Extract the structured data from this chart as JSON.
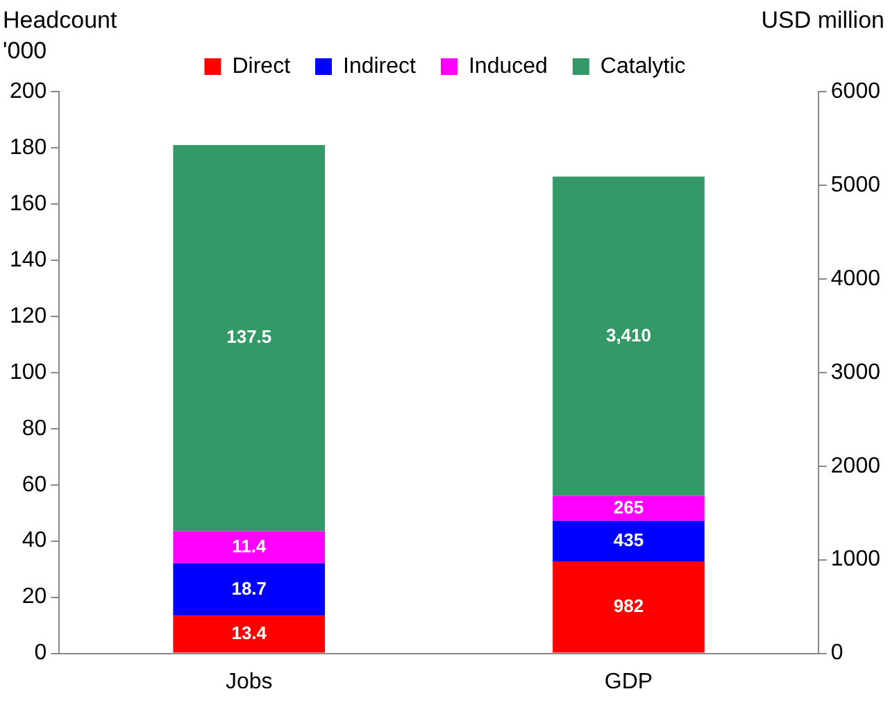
{
  "chart_data": {
    "type": "bar",
    "stacked": true,
    "categories": [
      "Jobs",
      "GDP"
    ],
    "ylabel": "Headcount\n'000",
    "y2label": "USD million",
    "ylim": [
      0,
      200
    ],
    "yticks": [
      0,
      20,
      40,
      60,
      80,
      100,
      120,
      140,
      160,
      180,
      200
    ],
    "y2lim": [
      0,
      6000
    ],
    "y2ticks": [
      0,
      1000,
      2000,
      3000,
      4000,
      5000,
      6000
    ],
    "legend": "top",
    "grid": false,
    "series": [
      {
        "name": "Direct",
        "color": "#ff0000",
        "values": [
          13.4,
          null
        ],
        "value_labels": [
          "13.4",
          null
        ]
      },
      {
        "name": "Indirect",
        "color": "#0000ff",
        "values": [
          18.7,
          null
        ],
        "value_labels": [
          "18.7",
          null
        ]
      },
      {
        "name": "Induced",
        "color": "#ff00ff",
        "values": [
          11.4,
          null
        ],
        "value_labels": [
          "11.4",
          null
        ]
      },
      {
        "name": "Catalytic",
        "color": "#339966",
        "values": [
          137.5,
          null
        ],
        "value_labels": [
          "137.5",
          null
        ]
      },
      {
        "color": "#ff0000",
        "axis": "y2",
        "values": [
          null,
          982
        ],
        "value_labels": [
          null,
          "982"
        ]
      },
      {
        "color": "#0000ff",
        "axis": "y2",
        "values": [
          null,
          435
        ],
        "value_labels": [
          null,
          "435"
        ]
      },
      {
        "color": "#ff00ff",
        "axis": "y2",
        "values": [
          null,
          265
        ],
        "value_labels": [
          null,
          "265"
        ]
      },
      {
        "color": "#339966",
        "axis": "y2",
        "values": [
          null,
          3410
        ],
        "value_labels": [
          null,
          "3,410"
        ]
      }
    ]
  }
}
